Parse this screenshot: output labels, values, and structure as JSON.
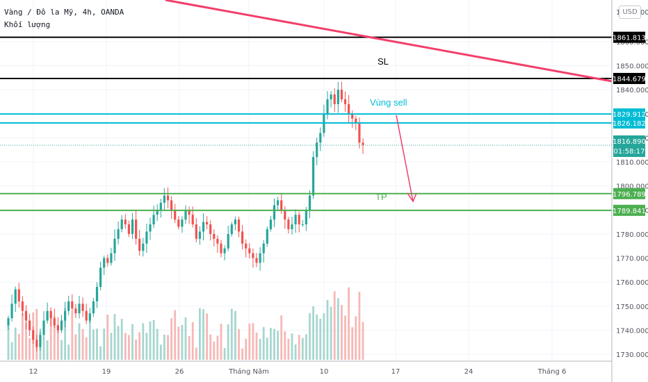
{
  "header": {
    "title": "Vàng / Đô la Mỹ, 4h, OANDA",
    "volume_label": "Khối lượng",
    "currency_button": "USD"
  },
  "chart_data": {
    "type": "candlestick",
    "symbol": "XAUUSD",
    "timeframe": "4h",
    "grid": true,
    "ylim": [
      1726,
      1862
    ],
    "y_axis_position": "right",
    "y_ticks": [
      1730,
      1740,
      1750,
      1760,
      1770,
      1780,
      1790,
      1800,
      1810,
      1820,
      1830,
      1840,
      1850,
      1860
    ],
    "y_tick_labels": [
      "1730.000",
      "1740.000",
      "1750.000",
      "1760.000",
      "1770.000",
      "1780.000",
      "1790.000",
      "1800.000",
      "1810.000",
      "1820.000",
      "1830.000",
      "1840.000",
      "1850.000",
      "1860.000"
    ],
    "top_partial_tick": "1870.000",
    "x_tick_labels": [
      "12",
      "19",
      "26",
      "Tháng Năm",
      "10",
      "17",
      "24",
      "Tháng 6"
    ],
    "last_price": 1816.89,
    "last_price_label": "1816.890",
    "countdown": "01:58:17",
    "horizontal_levels": [
      {
        "value": 1861.813,
        "label": "1861.813",
        "color": "#000000"
      },
      {
        "value": 1844.679,
        "label": "1844.679",
        "color": "#000000"
      },
      {
        "value": 1829.912,
        "label": "1829.912",
        "color": "#00bcd4"
      },
      {
        "value": 1826.182,
        "label": "1826.182",
        "color": "#00bcd4"
      },
      {
        "value": 1796.789,
        "label": "1796.789",
        "color": "#4caf50"
      },
      {
        "value": 1789.841,
        "label": "1789.841",
        "color": "#4caf50"
      }
    ],
    "annotations": [
      {
        "text": "SL",
        "color": "#000000"
      },
      {
        "text": "Vùng sell",
        "color": "#00bcd4"
      },
      {
        "text": "TP",
        "color": "#4caf50"
      }
    ],
    "trendline_color": "#f23e6a",
    "arrow_color": "#f23e6a",
    "up_color": "#26a69a",
    "down_color": "#ef5350",
    "closes": [
      1745,
      1751,
      1757,
      1752,
      1748,
      1744,
      1740,
      1736,
      1733,
      1738,
      1744,
      1748,
      1745,
      1742,
      1740,
      1744,
      1748,
      1752,
      1749,
      1747,
      1751,
      1748,
      1744,
      1747,
      1752,
      1758,
      1766,
      1770,
      1768,
      1772,
      1778,
      1782,
      1786,
      1784,
      1780,
      1786,
      1778,
      1773,
      1776,
      1781,
      1784,
      1788,
      1790,
      1793,
      1796,
      1794,
      1790,
      1786,
      1783,
      1786,
      1790,
      1788,
      1784,
      1778,
      1781,
      1785,
      1784,
      1780,
      1778,
      1776,
      1772,
      1774,
      1780,
      1784,
      1786,
      1781,
      1776,
      1774,
      1772,
      1770,
      1768,
      1772,
      1776,
      1782,
      1786,
      1792,
      1794,
      1790,
      1786,
      1782,
      1784,
      1788,
      1784,
      1784,
      1790,
      1796,
      1812,
      1818,
      1822,
      1830,
      1836,
      1838,
      1834,
      1840,
      1836,
      1834,
      1830,
      1828,
      1826,
      1818,
      1817
    ]
  }
}
